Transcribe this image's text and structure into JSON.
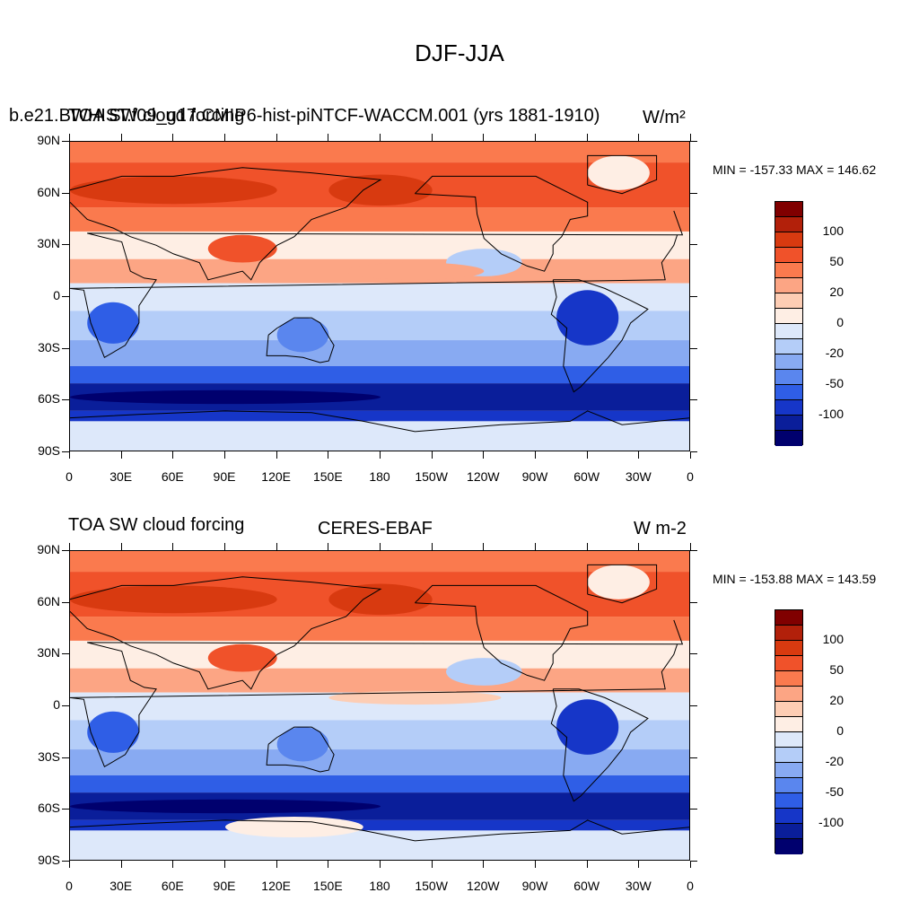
{
  "figure": {
    "title": "DJF-JJA"
  },
  "panels": [
    {
      "left_title": "TOA SW cloud forcing",
      "center_title": "b.e21.BWHIST.f09_g17.CMIP6-hist-piNTCF-WACCM.001 (yrs 1881-1910)",
      "right_title": "W/m²",
      "min_max_text": "MIN = -157.33 MAX = 146.62"
    },
    {
      "left_title": "TOA SW cloud forcing",
      "center_title": "CERES-EBAF",
      "right_title": "W m-2",
      "min_max_text": "MIN = -153.88 MAX = 143.59"
    }
  ],
  "axes": {
    "lat_labels": [
      "90N",
      "60N",
      "30N",
      "0",
      "30S",
      "60S",
      "90S"
    ],
    "lon_labels": [
      "0",
      "30E",
      "60E",
      "90E",
      "120E",
      "150E",
      "180",
      "150W",
      "120W",
      "90W",
      "60W",
      "30W",
      "0"
    ]
  },
  "colorbar": {
    "colors": [
      "#800000",
      "#b2200a",
      "#d83a10",
      "#f0522a",
      "#fa7a4e",
      "#fca584",
      "#fdcdb4",
      "#feeee4",
      "#dde8fa",
      "#b4cdf8",
      "#88aaf2",
      "#5a86ee",
      "#2f5ee6",
      "#1636c8",
      "#0a1e9a",
      "#00006e"
    ],
    "labels": [
      "100",
      "50",
      "20",
      "0",
      "-20",
      "-50",
      "-100"
    ]
  },
  "chart_data": {
    "type": "heatmap",
    "title": "DJF-JJA",
    "variable": "TOA SW cloud forcing",
    "units": "W m-2",
    "xlim": [
      0,
      360
    ],
    "ylim": [
      -90,
      90
    ],
    "contour_levels": [
      -130,
      -110,
      -90,
      -70,
      -50,
      -30,
      -20,
      -10,
      0,
      10,
      20,
      30,
      50,
      70,
      90,
      110,
      130
    ],
    "colorbar_labels": [
      100,
      50,
      20,
      0,
      -20,
      -50,
      -100
    ],
    "panels": [
      {
        "name": "b.e21.BWHIST.f09_g17.CMIP6-hist-piNTCF-WACCM.001 (yrs 1881-1910)",
        "min": -157.33,
        "max": 146.62
      },
      {
        "name": "CERES-EBAF",
        "min": -153.88,
        "max": 143.59
      }
    ],
    "zonal_pattern_description_values": {
      "lat": [
        80,
        65,
        45,
        30,
        15,
        0,
        -15,
        -30,
        -50,
        -60,
        -80
      ],
      "approx_value": [
        45,
        70,
        55,
        10,
        35,
        -10,
        -35,
        -25,
        -80,
        -110,
        -20
      ]
    }
  }
}
